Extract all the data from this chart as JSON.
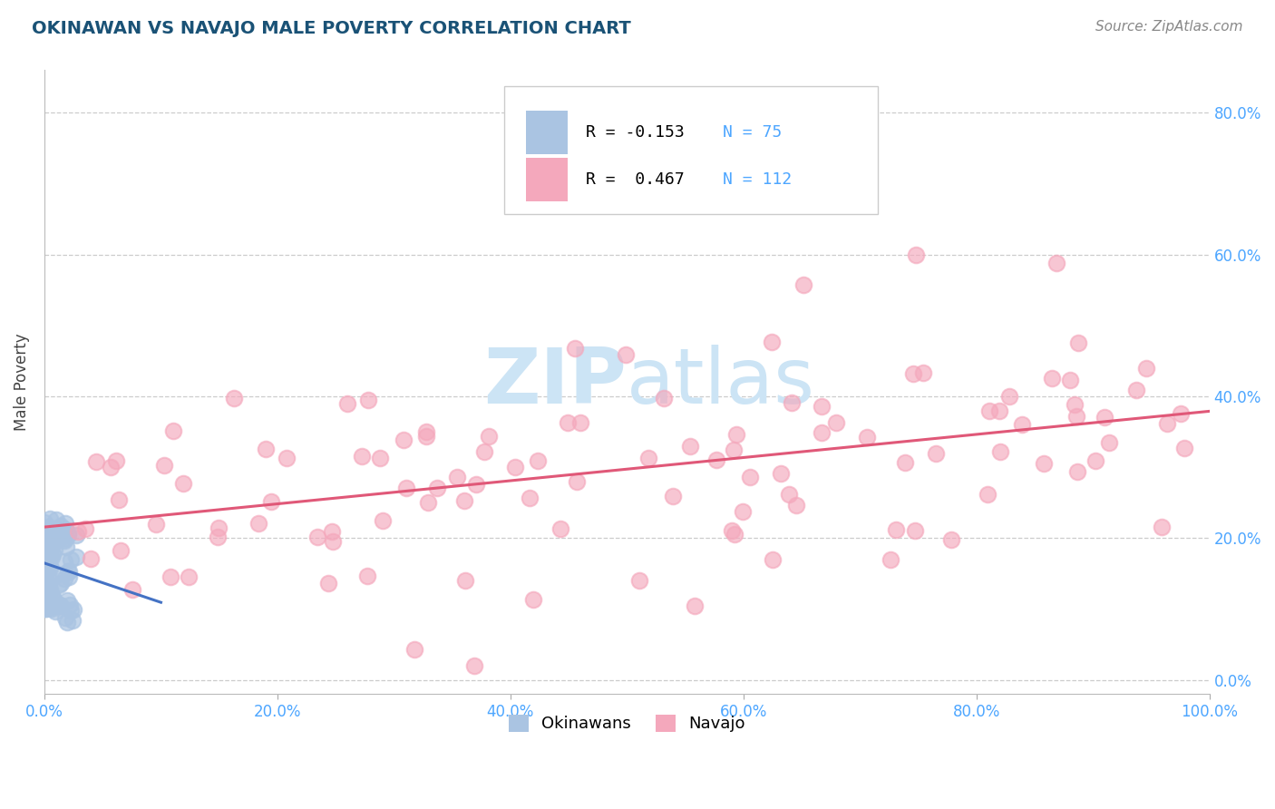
{
  "title": "OKINAWAN VS NAVAJO MALE POVERTY CORRELATION CHART",
  "source": "Source: ZipAtlas.com",
  "ylabel": "Male Poverty",
  "okinawan_R": -0.153,
  "okinawan_N": 75,
  "navajo_R": 0.467,
  "navajo_N": 112,
  "okinawan_color": "#aac4e2",
  "navajo_color": "#f4a8bc",
  "okinawan_line_color": "#4472c4",
  "navajo_line_color": "#e05878",
  "xlim": [
    0,
    1.0
  ],
  "ylim": [
    -0.02,
    0.86
  ],
  "yticks": [
    0.0,
    0.2,
    0.4,
    0.6,
    0.8
  ],
  "xticks": [
    0.0,
    0.2,
    0.4,
    0.6,
    0.8,
    1.0
  ],
  "title_color": "#1a5276",
  "source_color": "#888888",
  "axis_label_color": "#444444",
  "tick_label_color": "#4da6ff",
  "grid_color": "#cccccc",
  "background_color": "#ffffff",
  "watermark_color": "#cce4f5",
  "legend_N_color": "#4da6ff",
  "legend_R_neg_color": "#e05878",
  "legend_R_pos_color": "#4472c4"
}
